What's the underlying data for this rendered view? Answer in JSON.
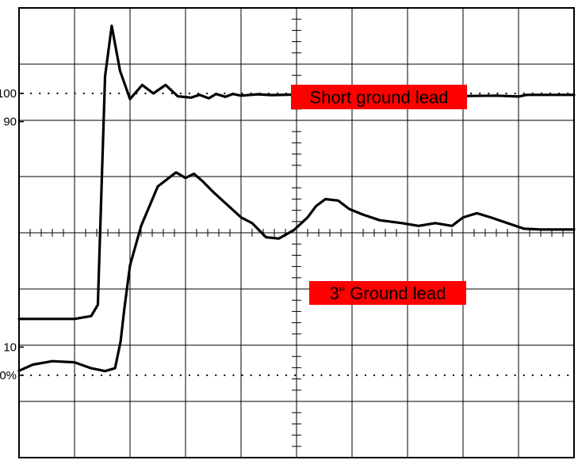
{
  "chart_data": {
    "type": "line",
    "title": "",
    "xlabel": "",
    "ylabel": "",
    "grid": true,
    "y_tick_labels": [
      "100",
      "90",
      "10",
      "0%"
    ],
    "y_tick_values": [
      100,
      90,
      10,
      0
    ],
    "series": [
      {
        "name": "Short ground lead",
        "points": [
          [
            0,
            20
          ],
          [
            1.0,
            20
          ],
          [
            1.3,
            21
          ],
          [
            1.42,
            25
          ],
          [
            1.55,
            106
          ],
          [
            1.67,
            124
          ],
          [
            1.82,
            108
          ],
          [
            2.0,
            98
          ],
          [
            2.22,
            103
          ],
          [
            2.42,
            100
          ],
          [
            2.64,
            103
          ],
          [
            2.86,
            99
          ],
          [
            3.1,
            98.5
          ],
          [
            3.25,
            99.5
          ],
          [
            3.42,
            98.3
          ],
          [
            3.55,
            99.8
          ],
          [
            3.72,
            98.8
          ],
          [
            3.85,
            99.8
          ],
          [
            4.0,
            99.2
          ],
          [
            4.3,
            99.7
          ],
          [
            4.55,
            99.4
          ],
          [
            5.0,
            99.6
          ],
          [
            5.5,
            99.7
          ],
          [
            5.95,
            99.6
          ],
          [
            6.0,
            98.7
          ],
          [
            6.4,
            98.9
          ],
          [
            7.0,
            99.0
          ],
          [
            7.6,
            99.1
          ],
          [
            8.1,
            99.1
          ],
          [
            8.6,
            99.2
          ],
          [
            9.0,
            98.9
          ],
          [
            9.15,
            99.5
          ],
          [
            10.0,
            99.5
          ]
        ]
      },
      {
        "name": "3“ Ground lead",
        "points": [
          [
            0,
            1.6
          ],
          [
            0.25,
            3.8
          ],
          [
            0.6,
            5.0
          ],
          [
            1.0,
            4.6
          ],
          [
            1.3,
            2.5
          ],
          [
            1.55,
            1.5
          ],
          [
            1.73,
            2.5
          ],
          [
            1.83,
            12
          ],
          [
            1.9,
            24
          ],
          [
            2.0,
            39
          ],
          [
            2.2,
            53
          ],
          [
            2.5,
            67
          ],
          [
            2.83,
            72
          ],
          [
            3.0,
            70
          ],
          [
            3.15,
            71.5
          ],
          [
            3.3,
            69
          ],
          [
            3.5,
            65
          ],
          [
            3.75,
            60.5
          ],
          [
            4.0,
            56
          ],
          [
            4.2,
            54
          ],
          [
            4.45,
            49
          ],
          [
            4.68,
            48.5
          ],
          [
            4.95,
            51.5
          ],
          [
            5.2,
            56
          ],
          [
            5.35,
            60
          ],
          [
            5.52,
            62.5
          ],
          [
            5.75,
            62
          ],
          [
            5.95,
            59
          ],
          [
            6.2,
            57
          ],
          [
            6.5,
            55
          ],
          [
            6.9,
            54
          ],
          [
            7.2,
            53
          ],
          [
            7.5,
            54
          ],
          [
            7.8,
            53
          ],
          [
            8.0,
            56
          ],
          [
            8.25,
            57.5
          ],
          [
            8.5,
            56
          ],
          [
            8.8,
            54
          ],
          [
            9.1,
            52
          ],
          [
            9.4,
            51.7
          ],
          [
            10.0,
            51.7
          ]
        ]
      }
    ],
    "annotations": [
      {
        "text": "Short ground lead",
        "color": "#ff0000"
      },
      {
        "text": "3“ Ground lead",
        "color": "#ff0000"
      }
    ]
  }
}
